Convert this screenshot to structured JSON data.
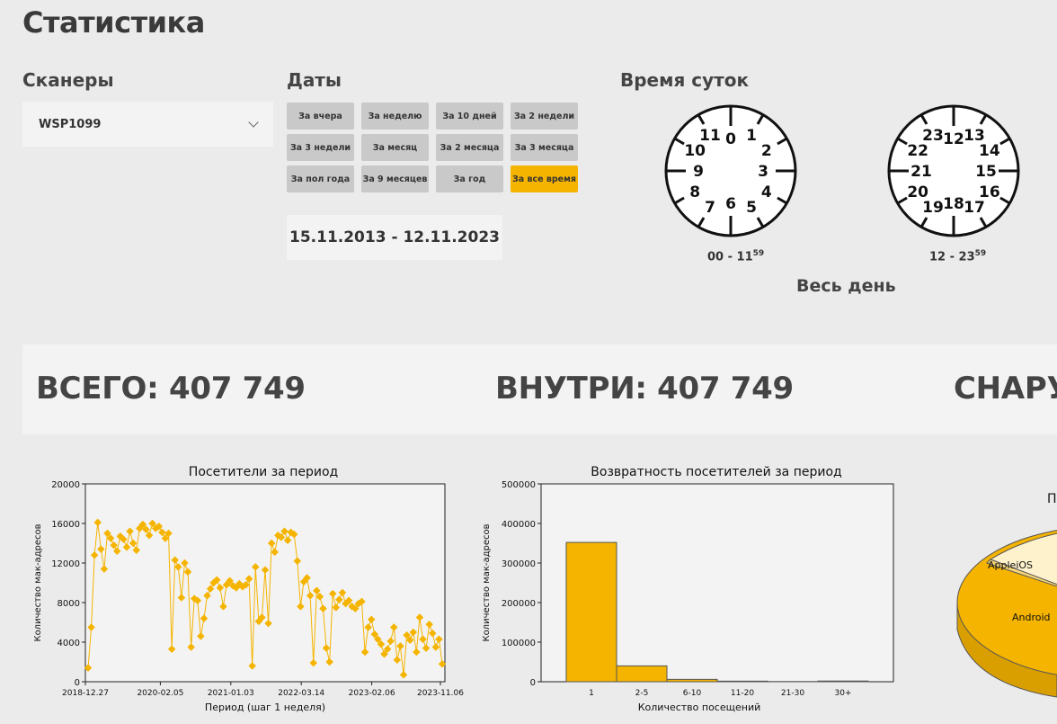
{
  "page_title": "Статистика",
  "scanners": {
    "heading": "Сканеры",
    "selected": "WSP1099"
  },
  "dates": {
    "heading": "Даты",
    "buttons": [
      "За вчера",
      "За неделю",
      "За 10 дней",
      "За 2 недели",
      "За 3 недели",
      "За месяц",
      "За 2 месяца",
      "За 3 месяца",
      "За пол года",
      "За 9 месяцев",
      "За год",
      "За все время"
    ],
    "active_index": 11,
    "range": "15.11.2013 - 12.11.2023"
  },
  "time_of_day": {
    "heading": "Время суток",
    "dial_am": {
      "numbers": [
        "0",
        "1",
        "2",
        "3",
        "4",
        "5",
        "6",
        "7",
        "8",
        "9",
        "10",
        "11"
      ],
      "caption": "00 - 11",
      "caption_sup": "59"
    },
    "dial_pm": {
      "numbers": [
        "12",
        "13",
        "14",
        "15",
        "16",
        "17",
        "18",
        "19",
        "20",
        "21",
        "22",
        "23"
      ],
      "caption": "12 - 23",
      "caption_sup": "59"
    },
    "all_day": "Весь день"
  },
  "totals": {
    "total": "ВСЕГО: 407 749",
    "inside": "ВНУТРИ: 407 749",
    "outside": "СНАРУ"
  },
  "accent_color": "#f5b400",
  "chart_data": [
    {
      "type": "line",
      "title": "Посетители за период",
      "xlabel": "Период (шаг 1 неделя)",
      "ylabel": "Количество мак-адресов",
      "ylim": [
        0,
        20000
      ],
      "yticks": [
        "0",
        "4000",
        "8000",
        "12000",
        "16000",
        "20000"
      ],
      "xticks": [
        "2018-12.27",
        "2020-02.05",
        "2021-01.03",
        "2022-03.14",
        "2023-02.06",
        "2023-11.06"
      ],
      "values": [
        1400,
        5500,
        12800,
        16100,
        13400,
        11400,
        15000,
        14500,
        13800,
        13200,
        14700,
        14400,
        13600,
        15200,
        14000,
        13300,
        15500,
        15900,
        15400,
        14800,
        16000,
        15500,
        15700,
        15100,
        14500,
        15000,
        3300,
        12300,
        11600,
        8500,
        12000,
        11100,
        3500,
        8400,
        8200,
        4600,
        6400,
        8700,
        9400,
        10000,
        10300,
        9500,
        7600,
        9800,
        10200,
        9700,
        9500,
        9900,
        9600,
        9800,
        10400,
        1600,
        11600,
        6100,
        6500,
        11300,
        5900,
        14000,
        13100,
        14800,
        14600,
        15200,
        14300,
        15100,
        14900,
        12200,
        7600,
        10100,
        10500,
        8700,
        1900,
        9200,
        8600,
        7400,
        3400,
        2000,
        8900,
        7500,
        8300,
        9000,
        7900,
        8200,
        7600,
        7400,
        7900,
        8100,
        3000,
        5500,
        6300,
        4800,
        4300,
        3800,
        2800,
        3300,
        4100,
        5500,
        2200,
        3600,
        700,
        4700,
        4200,
        5000,
        3000,
        6500,
        4300,
        3400,
        5800,
        4900,
        3500,
        4300,
        1800
      ]
    },
    {
      "type": "bar",
      "title": "Возвратность посетителей за период",
      "xlabel": "Количество посещений",
      "ylabel": "Количество мак-адресов",
      "ylim": [
        0,
        500000
      ],
      "yticks": [
        "0",
        "100000",
        "200000",
        "300000",
        "400000",
        "500000"
      ],
      "categories": [
        "1",
        "2-5",
        "6-10",
        "11-20",
        "21-30",
        "30+"
      ],
      "values": [
        352000,
        40000,
        6000,
        1500,
        500,
        1800
      ]
    },
    {
      "type": "pie",
      "title": "П",
      "categories": [
        "AppleiOS",
        "Android"
      ],
      "values": [
        12,
        83
      ]
    }
  ]
}
